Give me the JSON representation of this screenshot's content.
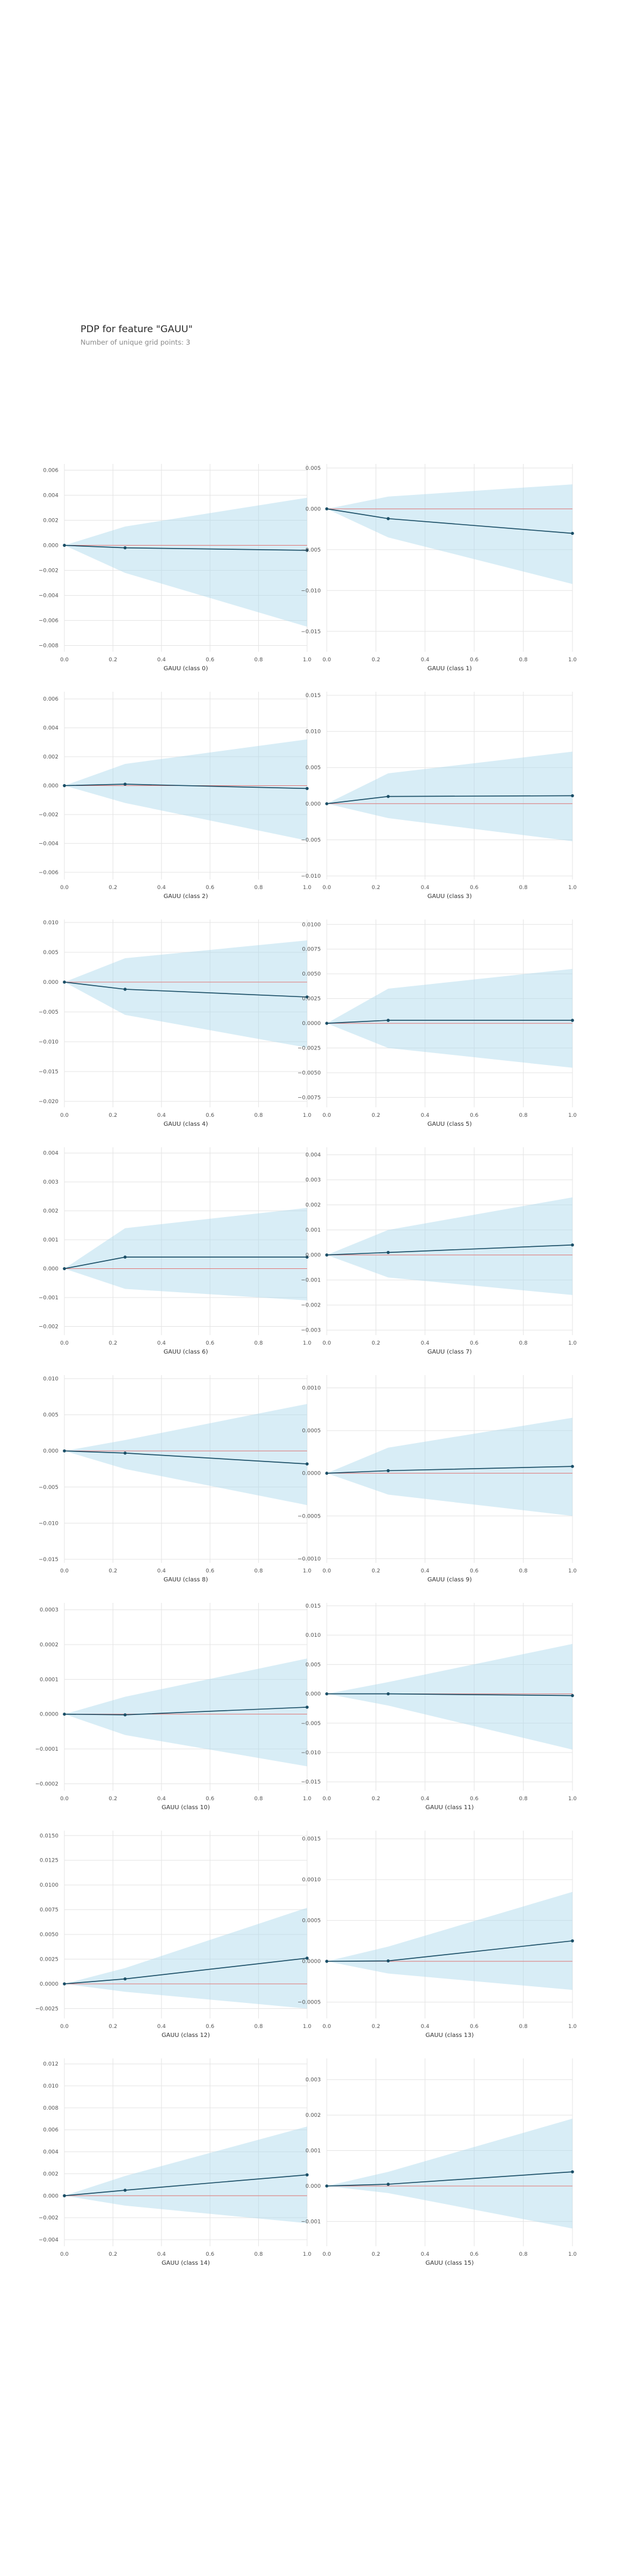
{
  "header": {
    "title": "PDP for feature \"GAUU\"",
    "subtitle": "Number of unique grid points: 3"
  },
  "colors": {
    "band": "#a8d8ea",
    "line": "#1a4e66",
    "baseline": "#e07b7b",
    "grid": "#e5e5e5"
  },
  "chart_data": [
    {
      "type": "line",
      "xlabel": "GAUU (class 0)",
      "x": [
        0,
        0.25,
        1
      ],
      "y": [
        0,
        -0.0002,
        -0.0004
      ],
      "upper": [
        0,
        0.0015,
        0.0038
      ],
      "lower": [
        0,
        -0.0022,
        -0.0065
      ],
      "xticks": [
        "0.0",
        "0.2",
        "0.4",
        "0.6",
        "0.8",
        "1.0"
      ],
      "yticks": [
        {
          "v": 0.006,
          "t": "0.006"
        },
        {
          "v": 0.004,
          "t": "0.004"
        },
        {
          "v": 0.002,
          "t": "0.002"
        },
        {
          "v": 0,
          "t": "0.000"
        },
        {
          "v": -0.002,
          "t": "−0.002"
        },
        {
          "v": -0.004,
          "t": "−0.004"
        },
        {
          "v": -0.006,
          "t": "−0.006"
        },
        {
          "v": -0.008,
          "t": "−0.008"
        }
      ],
      "ylim": [
        -0.0085,
        0.0065
      ],
      "grid": true
    },
    {
      "type": "line",
      "xlabel": "GAUU (class 1)",
      "x": [
        0,
        0.25,
        1
      ],
      "y": [
        0,
        -0.0012,
        -0.003
      ],
      "upper": [
        0,
        0.0015,
        0.003
      ],
      "lower": [
        0,
        -0.0035,
        -0.0092
      ],
      "xticks": [
        "0.0",
        "0.2",
        "0.4",
        "0.6",
        "0.8",
        "1.0"
      ],
      "yticks": [
        {
          "v": 0.005,
          "t": "0.005"
        },
        {
          "v": 0,
          "t": "0.000"
        },
        {
          "v": -0.005,
          "t": "−0.005"
        },
        {
          "v": -0.01,
          "t": "−0.010"
        },
        {
          "v": -0.015,
          "t": "−0.015"
        }
      ],
      "ylim": [
        -0.0175,
        0.0055
      ],
      "grid": true
    },
    {
      "type": "line",
      "xlabel": "GAUU (class 2)",
      "x": [
        0,
        0.25,
        1
      ],
      "y": [
        0,
        0.0001,
        -0.0002
      ],
      "upper": [
        0,
        0.0015,
        0.0032
      ],
      "lower": [
        0,
        -0.0012,
        -0.0038
      ],
      "xticks": [
        "0.0",
        "0.2",
        "0.4",
        "0.6",
        "0.8",
        "1.0"
      ],
      "yticks": [
        {
          "v": 0.006,
          "t": "0.006"
        },
        {
          "v": 0.004,
          "t": "0.004"
        },
        {
          "v": 0.002,
          "t": "0.002"
        },
        {
          "v": 0,
          "t": "0.000"
        },
        {
          "v": -0.002,
          "t": "−0.002"
        },
        {
          "v": -0.004,
          "t": "−0.004"
        },
        {
          "v": -0.006,
          "t": "−0.006"
        }
      ],
      "ylim": [
        -0.0065,
        0.0065
      ],
      "grid": true
    },
    {
      "type": "line",
      "xlabel": "GAUU (class 3)",
      "x": [
        0,
        0.25,
        1
      ],
      "y": [
        0,
        0.001,
        0.0011
      ],
      "upper": [
        0,
        0.0042,
        0.0072
      ],
      "lower": [
        0,
        -0.002,
        -0.0052
      ],
      "xticks": [
        "0.0",
        "0.2",
        "0.4",
        "0.6",
        "0.8",
        "1.0"
      ],
      "yticks": [
        {
          "v": 0.015,
          "t": "0.015"
        },
        {
          "v": 0.01,
          "t": "0.010"
        },
        {
          "v": 0.005,
          "t": "0.005"
        },
        {
          "v": 0,
          "t": "0.000"
        },
        {
          "v": -0.005,
          "t": "−0.005"
        },
        {
          "v": -0.01,
          "t": "−0.010"
        }
      ],
      "ylim": [
        -0.0105,
        0.0155
      ],
      "grid": true
    },
    {
      "type": "line",
      "xlabel": "GAUU (class 4)",
      "x": [
        0,
        0.25,
        1
      ],
      "y": [
        0,
        -0.0012,
        -0.0025
      ],
      "upper": [
        0,
        0.004,
        0.007
      ],
      "lower": [
        0,
        -0.0055,
        -0.011
      ],
      "xticks": [
        "0.0",
        "0.2",
        "0.4",
        "0.6",
        "0.8",
        "1.0"
      ],
      "yticks": [
        {
          "v": 0.01,
          "t": "0.010"
        },
        {
          "v": 0.005,
          "t": "0.005"
        },
        {
          "v": 0,
          "t": "0.000"
        },
        {
          "v": -0.005,
          "t": "−0.005"
        },
        {
          "v": -0.01,
          "t": "−0.010"
        },
        {
          "v": -0.015,
          "t": "−0.015"
        },
        {
          "v": -0.02,
          "t": "−0.020"
        }
      ],
      "ylim": [
        -0.021,
        0.0105
      ],
      "grid": true
    },
    {
      "type": "line",
      "xlabel": "GAUU (class 5)",
      "x": [
        0,
        0.25,
        1
      ],
      "y": [
        0,
        0.0003,
        0.0003
      ],
      "upper": [
        0,
        0.0035,
        0.0055
      ],
      "lower": [
        0,
        -0.0025,
        -0.0045
      ],
      "xticks": [
        "0.0",
        "0.2",
        "0.4",
        "0.6",
        "0.8",
        "1.0"
      ],
      "yticks": [
        {
          "v": 0.01,
          "t": "0.0100"
        },
        {
          "v": 0.0075,
          "t": "0.0075"
        },
        {
          "v": 0.005,
          "t": "0.0050"
        },
        {
          "v": 0.0025,
          "t": "0.0025"
        },
        {
          "v": 0,
          "t": "0.0000"
        },
        {
          "v": -0.0025,
          "t": "−0.0025"
        },
        {
          "v": -0.005,
          "t": "−0.0050"
        },
        {
          "v": -0.0075,
          "t": "−0.0075"
        }
      ],
      "ylim": [
        -0.0085,
        0.0105
      ],
      "grid": true
    },
    {
      "type": "line",
      "xlabel": "GAUU (class 6)",
      "x": [
        0,
        0.25,
        1
      ],
      "y": [
        0,
        0.0004,
        0.0004
      ],
      "upper": [
        0,
        0.0014,
        0.0021
      ],
      "lower": [
        0,
        -0.0007,
        -0.0011
      ],
      "xticks": [
        "0.0",
        "0.2",
        "0.4",
        "0.6",
        "0.8",
        "1.0"
      ],
      "yticks": [
        {
          "v": 0.004,
          "t": "0.004"
        },
        {
          "v": 0.003,
          "t": "0.003"
        },
        {
          "v": 0.002,
          "t": "0.002"
        },
        {
          "v": 0.001,
          "t": "0.001"
        },
        {
          "v": 0,
          "t": "0.000"
        },
        {
          "v": -0.001,
          "t": "−0.001"
        },
        {
          "v": -0.002,
          "t": "−0.002"
        }
      ],
      "ylim": [
        -0.0023,
        0.0042
      ],
      "grid": true
    },
    {
      "type": "line",
      "xlabel": "GAUU (class 7)",
      "x": [
        0,
        0.25,
        1
      ],
      "y": [
        0,
        0.0001,
        0.0004
      ],
      "upper": [
        0,
        0.001,
        0.0023
      ],
      "lower": [
        0,
        -0.0009,
        -0.0016
      ],
      "xticks": [
        "0.0",
        "0.2",
        "0.4",
        "0.6",
        "0.8",
        "1.0"
      ],
      "yticks": [
        {
          "v": 0.004,
          "t": "0.004"
        },
        {
          "v": 0.003,
          "t": "0.003"
        },
        {
          "v": 0.002,
          "t": "0.002"
        },
        {
          "v": 0.001,
          "t": "0.001"
        },
        {
          "v": 0,
          "t": "0.000"
        },
        {
          "v": -0.001,
          "t": "−0.001"
        },
        {
          "v": -0.002,
          "t": "−0.002"
        },
        {
          "v": -0.003,
          "t": "−0.003"
        }
      ],
      "ylim": [
        -0.0032,
        0.0043
      ],
      "grid": true
    },
    {
      "type": "line",
      "xlabel": "GAUU (class 8)",
      "x": [
        0,
        0.25,
        1
      ],
      "y": [
        0,
        -0.0003,
        -0.0018
      ],
      "upper": [
        0,
        0.0015,
        0.0065
      ],
      "lower": [
        0,
        -0.0025,
        -0.0075
      ],
      "xticks": [
        "0.0",
        "0.2",
        "0.4",
        "0.6",
        "0.8",
        "1.0"
      ],
      "yticks": [
        {
          "v": 0.01,
          "t": "0.010"
        },
        {
          "v": 0.005,
          "t": "0.005"
        },
        {
          "v": 0,
          "t": "0.000"
        },
        {
          "v": -0.005,
          "t": "−0.005"
        },
        {
          "v": -0.01,
          "t": "−0.010"
        },
        {
          "v": -0.015,
          "t": "−0.015"
        }
      ],
      "ylim": [
        -0.0155,
        0.0105
      ],
      "grid": true
    },
    {
      "type": "line",
      "xlabel": "GAUU (class 9)",
      "x": [
        0,
        0.25,
        1
      ],
      "y": [
        0,
        3e-05,
        8e-05
      ],
      "upper": [
        0,
        0.0003,
        0.00065
      ],
      "lower": [
        0,
        -0.00025,
        -0.0005
      ],
      "xticks": [
        "0.0",
        "0.2",
        "0.4",
        "0.6",
        "0.8",
        "1.0"
      ],
      "yticks": [
        {
          "v": 0.001,
          "t": "0.0010"
        },
        {
          "v": 0.0005,
          "t": "0.0005"
        },
        {
          "v": 0,
          "t": "0.0000"
        },
        {
          "v": -0.0005,
          "t": "−0.0005"
        },
        {
          "v": -0.001,
          "t": "−0.0010"
        }
      ],
      "ylim": [
        -0.00105,
        0.00115
      ],
      "grid": true
    },
    {
      "type": "line",
      "xlabel": "GAUU (class 10)",
      "x": [
        0,
        0.25,
        1
      ],
      "y": [
        0,
        -2e-06,
        2e-05
      ],
      "upper": [
        0,
        5e-05,
        0.00016
      ],
      "lower": [
        0,
        -6e-05,
        -0.00015
      ],
      "xticks": [
        "0.0",
        "0.2",
        "0.4",
        "0.6",
        "0.8",
        "1.0"
      ],
      "yticks": [
        {
          "v": 0.0003,
          "t": "0.0003"
        },
        {
          "v": 0.0002,
          "t": "0.0002"
        },
        {
          "v": 0.0001,
          "t": "0.0001"
        },
        {
          "v": 0,
          "t": "0.0000"
        },
        {
          "v": -0.0001,
          "t": "−0.0001"
        },
        {
          "v": -0.0002,
          "t": "−0.0002"
        }
      ],
      "ylim": [
        -0.00022,
        0.00032
      ],
      "grid": true
    },
    {
      "type": "line",
      "xlabel": "GAUU (class 11)",
      "x": [
        0,
        0.25,
        1
      ],
      "y": [
        0,
        0,
        -0.0003
      ],
      "upper": [
        0,
        0.002,
        0.0085
      ],
      "lower": [
        0,
        -0.002,
        -0.0095
      ],
      "xticks": [
        "0.0",
        "0.2",
        "0.4",
        "0.6",
        "0.8",
        "1.0"
      ],
      "yticks": [
        {
          "v": 0.015,
          "t": "0.015"
        },
        {
          "v": 0.01,
          "t": "0.010"
        },
        {
          "v": 0.005,
          "t": "0.005"
        },
        {
          "v": 0,
          "t": "0.000"
        },
        {
          "v": -0.005,
          "t": "−0.005"
        },
        {
          "v": -0.01,
          "t": "−0.010"
        },
        {
          "v": -0.015,
          "t": "−0.015"
        }
      ],
      "ylim": [
        -0.0165,
        0.0155
      ],
      "grid": true
    },
    {
      "type": "line",
      "xlabel": "GAUU (class 12)",
      "x": [
        0,
        0.25,
        1
      ],
      "y": [
        0,
        0.0005,
        0.0026
      ],
      "upper": [
        0,
        0.0016,
        0.0077
      ],
      "lower": [
        0,
        -0.0008,
        -0.0025
      ],
      "xticks": [
        "0.0",
        "0.2",
        "0.4",
        "0.6",
        "0.8",
        "1.0"
      ],
      "yticks": [
        {
          "v": 0.015,
          "t": "0.0150"
        },
        {
          "v": 0.0125,
          "t": "0.0125"
        },
        {
          "v": 0.01,
          "t": "0.0100"
        },
        {
          "v": 0.0075,
          "t": "0.0075"
        },
        {
          "v": 0.005,
          "t": "0.0050"
        },
        {
          "v": 0.0025,
          "t": "0.0025"
        },
        {
          "v": 0,
          "t": "0.0000"
        },
        {
          "v": -0.0025,
          "t": "−0.0025"
        }
      ],
      "ylim": [
        -0.0035,
        0.0155
      ],
      "grid": true
    },
    {
      "type": "line",
      "xlabel": "GAUU (class 13)",
      "x": [
        0,
        0.25,
        1
      ],
      "y": [
        0,
        5e-06,
        0.00025
      ],
      "upper": [
        0,
        0.00018,
        0.00085
      ],
      "lower": [
        0,
        -0.00015,
        -0.00035
      ],
      "xticks": [
        "0.0",
        "0.2",
        "0.4",
        "0.6",
        "0.8",
        "1.0"
      ],
      "yticks": [
        {
          "v": 0.0015,
          "t": "0.0015"
        },
        {
          "v": 0.001,
          "t": "0.0010"
        },
        {
          "v": 0.0005,
          "t": "0.0005"
        },
        {
          "v": 0,
          "t": "0.0000"
        },
        {
          "v": -0.0005,
          "t": "−0.0005"
        }
      ],
      "ylim": [
        -0.0007,
        0.0016
      ],
      "grid": true
    },
    {
      "type": "line",
      "xlabel": "GAUU (class 14)",
      "x": [
        0,
        0.25,
        1
      ],
      "y": [
        0,
        0.0005,
        0.0019
      ],
      "upper": [
        0,
        0.0018,
        0.0063
      ],
      "lower": [
        0,
        -0.0009,
        -0.0025
      ],
      "xticks": [
        "0.0",
        "0.2",
        "0.4",
        "0.6",
        "0.8",
        "1.0"
      ],
      "yticks": [
        {
          "v": 0.012,
          "t": "0.012"
        },
        {
          "v": 0.01,
          "t": "0.010"
        },
        {
          "v": 0.008,
          "t": "0.008"
        },
        {
          "v": 0.006,
          "t": "0.006"
        },
        {
          "v": 0.004,
          "t": "0.004"
        },
        {
          "v": 0.002,
          "t": "0.002"
        },
        {
          "v": 0,
          "t": "0.000"
        },
        {
          "v": -0.002,
          "t": "−0.002"
        },
        {
          "v": -0.004,
          "t": "−0.004"
        }
      ],
      "ylim": [
        -0.0046,
        0.0125
      ],
      "grid": true
    },
    {
      "type": "line",
      "xlabel": "GAUU (class 15)",
      "x": [
        0,
        0.25,
        1
      ],
      "y": [
        0,
        5e-05,
        0.0004
      ],
      "upper": [
        0,
        0.0004,
        0.0019
      ],
      "lower": [
        0,
        -0.0002,
        -0.0012
      ],
      "xticks": [
        "0.0",
        "0.2",
        "0.4",
        "0.6",
        "0.8",
        "1.0"
      ],
      "yticks": [
        {
          "v": 0.003,
          "t": "0.003"
        },
        {
          "v": 0.002,
          "t": "0.002"
        },
        {
          "v": 0.001,
          "t": "0.001"
        },
        {
          "v": 0,
          "t": "0.000"
        },
        {
          "v": -0.001,
          "t": "−0.001"
        }
      ],
      "ylim": [
        -0.0017,
        0.0036
      ],
      "grid": true
    }
  ]
}
